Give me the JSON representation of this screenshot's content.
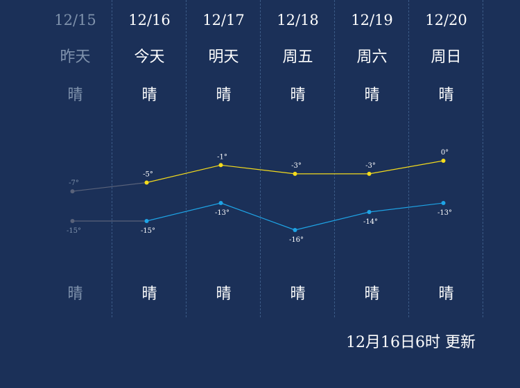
{
  "forecast": [
    {
      "date": "12/15",
      "day": "昨天",
      "day_weather": "晴",
      "night_weather": "晴",
      "high": -7,
      "low": -15,
      "high_label": "-7°",
      "low_label": "-15°",
      "past": true
    },
    {
      "date": "12/16",
      "day": "今天",
      "day_weather": "晴",
      "night_weather": "晴",
      "high": -5,
      "low": -15,
      "high_label": "-5°",
      "low_label": "-15°",
      "past": false
    },
    {
      "date": "12/17",
      "day": "明天",
      "day_weather": "晴",
      "night_weather": "晴",
      "high": -1,
      "low": -13,
      "high_label": "-1°",
      "low_label": "-13°",
      "past": false
    },
    {
      "date": "12/18",
      "day": "周五",
      "day_weather": "晴",
      "night_weather": "晴",
      "high": -3,
      "low": -16,
      "high_label": "-3°",
      "low_label": "-16°",
      "past": false
    },
    {
      "date": "12/19",
      "day": "周六",
      "day_weather": "晴",
      "night_weather": "晴",
      "high": -3,
      "low": -14,
      "high_label": "-3°",
      "low_label": "-14°",
      "past": false
    },
    {
      "date": "12/20",
      "day": "周日",
      "day_weather": "晴",
      "night_weather": "晴",
      "high": 0,
      "low": -13,
      "high_label": "0°",
      "low_label": "-13°",
      "past": false
    }
  ],
  "updated": "12月16日6时 更新",
  "colors": {
    "background": "#1b3058",
    "high_line": "#f5dc1c",
    "low_line": "#1ea4e6",
    "past_line": "#59627a",
    "past_text": "#8093ad",
    "divider": "#3b5a86"
  },
  "chart_data": {
    "type": "line",
    "categories": [
      "12/15",
      "12/16",
      "12/17",
      "12/18",
      "12/19",
      "12/20"
    ],
    "series": [
      {
        "values": [
          -7,
          -5,
          -1,
          -3,
          -3,
          0
        ]
      },
      {
        "values": [
          -15,
          -15,
          -13,
          -16,
          -14,
          -13
        ]
      }
    ],
    "grid": false,
    "legend": "none"
  }
}
